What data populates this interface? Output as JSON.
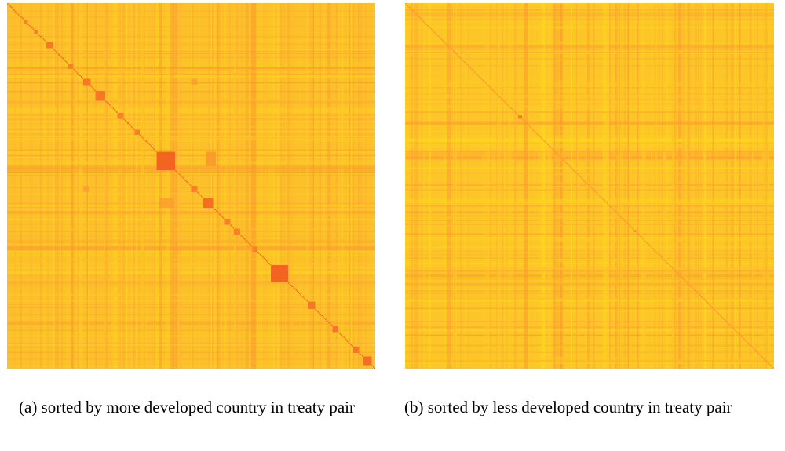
{
  "colors": {
    "low": "#ffe01a",
    "base": "#fcc02a",
    "mid": "#fba531",
    "high": "#f2521d",
    "background": "#ffffff"
  },
  "chart_data": [
    {
      "type": "heatmap",
      "caption": "(a) sorted by more developed country in treaty pair",
      "matrix_size": 300,
      "value_scale": "yellow (low) to red (high)",
      "background_level": 0.35,
      "diagonal": "strong",
      "diagonal_blocks": [
        {
          "start": 6,
          "size": 2,
          "level": 0.75
        },
        {
          "start": 14,
          "size": 3,
          "level": 0.75
        },
        {
          "start": 22,
          "size": 3,
          "level": 0.75
        },
        {
          "start": 32,
          "size": 5,
          "level": 0.8
        },
        {
          "start": 50,
          "size": 4,
          "level": 0.75
        },
        {
          "start": 62,
          "size": 6,
          "level": 0.8
        },
        {
          "start": 72,
          "size": 8,
          "level": 0.8
        },
        {
          "start": 90,
          "size": 5,
          "level": 0.75
        },
        {
          "start": 104,
          "size": 4,
          "level": 0.75
        },
        {
          "start": 122,
          "size": 15,
          "level": 0.9
        },
        {
          "start": 150,
          "size": 5,
          "level": 0.75
        },
        {
          "start": 160,
          "size": 8,
          "level": 0.85
        },
        {
          "start": 177,
          "size": 5,
          "level": 0.75
        },
        {
          "start": 185,
          "size": 5,
          "level": 0.75
        },
        {
          "start": 200,
          "size": 4,
          "level": 0.75
        },
        {
          "start": 215,
          "size": 14,
          "level": 0.9
        },
        {
          "start": 245,
          "size": 6,
          "level": 0.8
        },
        {
          "start": 265,
          "size": 5,
          "level": 0.8
        },
        {
          "start": 282,
          "size": 5,
          "level": 0.8
        },
        {
          "start": 290,
          "size": 7,
          "level": 0.85
        }
      ],
      "off_diagonal_blocks": [
        {
          "row": 122,
          "col": 162,
          "height": 12,
          "width": 8,
          "level": 0.65
        },
        {
          "row": 160,
          "col": 124,
          "height": 8,
          "width": 12,
          "level": 0.6
        },
        {
          "row": 62,
          "col": 150,
          "height": 5,
          "width": 5,
          "level": 0.6
        },
        {
          "row": 150,
          "col": 62,
          "height": 5,
          "width": 5,
          "level": 0.6
        }
      ]
    },
    {
      "type": "heatmap",
      "caption": "(b) sorted by less developed country in treaty pair",
      "matrix_size": 300,
      "value_scale": "yellow (low) to red (high)",
      "background_level": 0.3,
      "diagonal": "thin",
      "diagonal_blocks": [
        {
          "start": 92,
          "size": 3,
          "level": 0.75
        },
        {
          "start": 186,
          "size": 2,
          "level": 0.65
        }
      ],
      "off_diagonal_blocks": []
    }
  ]
}
